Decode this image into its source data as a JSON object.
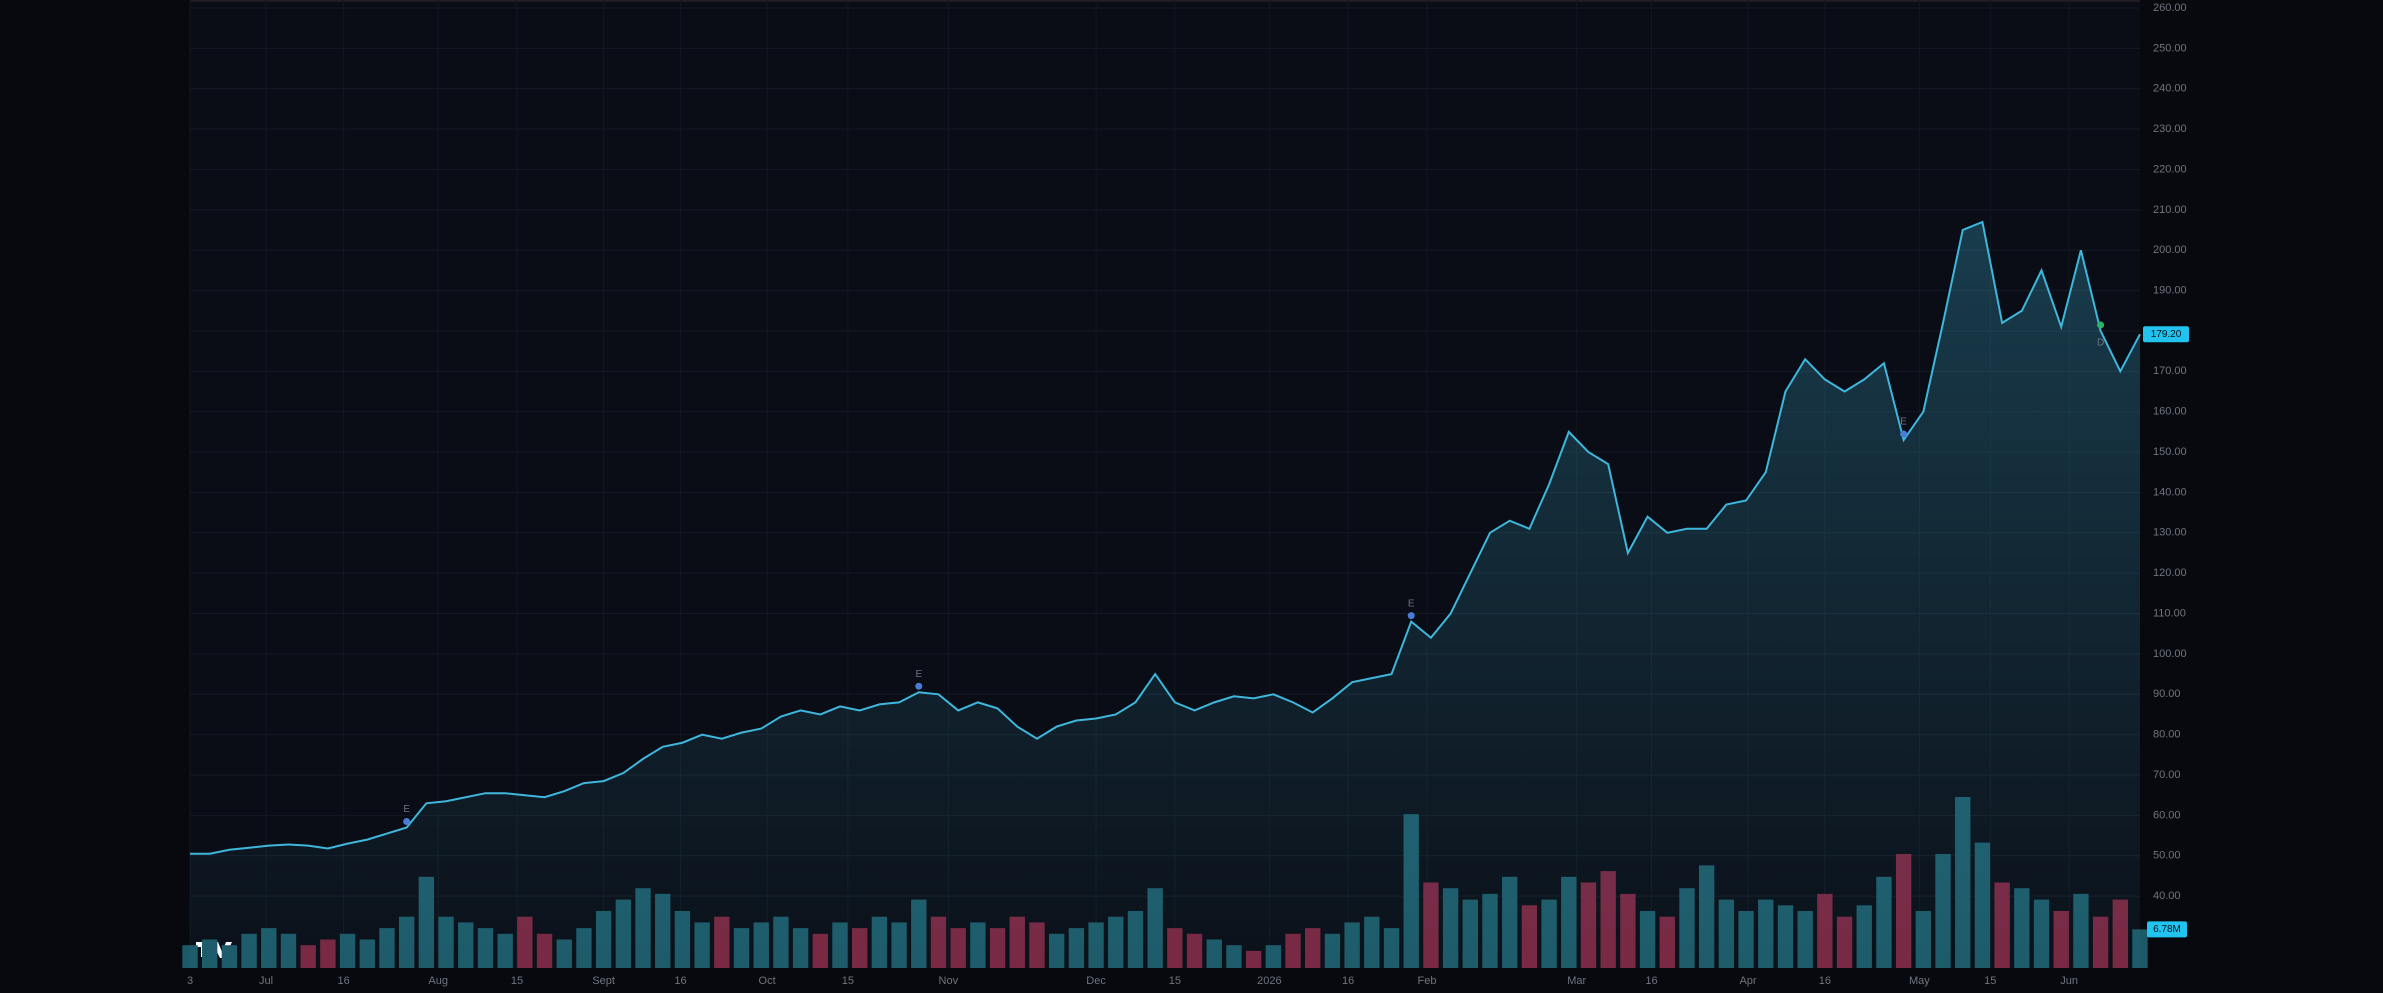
{
  "chart_data": {
    "type": "line",
    "xlim": [
      0,
      99
    ],
    "xticks": [
      {
        "value": 0,
        "label": "3"
      },
      {
        "value": 3.86,
        "label": "Jul"
      },
      {
        "value": 7.8,
        "label": "16"
      },
      {
        "value": 12.6,
        "label": "Aug"
      },
      {
        "value": 16.6,
        "label": "15"
      },
      {
        "value": 21,
        "label": "Sept"
      },
      {
        "value": 24.9,
        "label": "16"
      },
      {
        "value": 29.3,
        "label": "Oct"
      },
      {
        "value": 33.4,
        "label": "15"
      },
      {
        "value": 38.5,
        "label": "Nov"
      },
      {
        "value": 46,
        "label": "Dec"
      },
      {
        "value": 50,
        "label": "15"
      },
      {
        "value": 54.8,
        "label": "2026"
      },
      {
        "value": 58.8,
        "label": "16"
      },
      {
        "value": 62.8,
        "label": "Feb"
      },
      {
        "value": 70.4,
        "label": "Mar"
      },
      {
        "value": 74.2,
        "label": "16"
      },
      {
        "value": 79.1,
        "label": "Apr"
      },
      {
        "value": 83,
        "label": "16"
      },
      {
        "value": 87.8,
        "label": "May"
      },
      {
        "value": 91.4,
        "label": "15"
      },
      {
        "value": 95.4,
        "label": "Jun"
      }
    ],
    "ylim": [
      22.2,
      260
    ],
    "yticks": [
      {
        "value": 40,
        "label": "40.00"
      },
      {
        "value": 50,
        "label": "50.00"
      },
      {
        "value": 60,
        "label": "60.00"
      },
      {
        "value": 70,
        "label": "70.00"
      },
      {
        "value": 80,
        "label": "80.00"
      },
      {
        "value": 90,
        "label": "90.00"
      },
      {
        "value": 100,
        "label": "100.00"
      },
      {
        "value": 110,
        "label": "110.00"
      },
      {
        "value": 120,
        "label": "120.00"
      },
      {
        "value": 130,
        "label": "130.00"
      },
      {
        "value": 140,
        "label": "140.00"
      },
      {
        "value": 150,
        "label": "150.00"
      },
      {
        "value": 160,
        "label": "160.00"
      },
      {
        "value": 170,
        "label": "170.00"
      },
      {
        "value": 180,
        "label": "180.00"
      },
      {
        "value": 190,
        "label": "190.00"
      },
      {
        "value": 200,
        "label": "200.00"
      },
      {
        "value": 210,
        "label": "210.00"
      },
      {
        "value": 220,
        "label": "220.00"
      },
      {
        "value": 230,
        "label": "230.00"
      },
      {
        "value": 240,
        "label": "240.00"
      },
      {
        "value": 250,
        "label": "250.00"
      },
      {
        "value": 260,
        "label": "260.00"
      }
    ],
    "grid": true,
    "price": {
      "color": "#3fb6dc",
      "values": [
        50.5,
        50.5,
        51.5,
        52,
        52.5,
        52.8,
        52.5,
        51.8,
        53,
        54,
        55.5,
        57,
        63,
        63.5,
        64.5,
        65.5,
        65.5,
        65,
        64.5,
        66,
        68,
        68.5,
        70.5,
        74,
        77,
        78,
        80,
        79,
        80.5,
        81.5,
        84.5,
        86,
        85,
        87,
        86,
        87.5,
        88,
        90.5,
        90,
        86,
        88,
        86.5,
        82,
        79,
        82,
        83.5,
        84,
        85,
        88,
        95,
        88,
        86,
        88,
        89.5,
        89,
        90,
        88,
        85.5,
        89,
        93,
        94,
        95,
        108,
        104,
        110,
        120,
        130,
        133,
        131,
        142,
        155,
        150,
        147,
        125,
        134,
        130,
        131,
        131,
        137,
        138,
        145,
        165,
        173,
        168,
        165,
        168,
        172,
        153,
        160,
        182,
        205,
        207,
        182,
        185,
        195,
        181,
        200,
        180,
        170,
        179.2
      ],
      "current": {
        "value": 179.2,
        "label": "179.20"
      }
    },
    "volume": {
      "ylim": [
        0,
        40
      ],
      "up_color": "#1d5a68",
      "down_color": "#7a2640",
      "values": [
        4,
        5,
        4,
        6,
        7,
        6,
        4,
        5,
        6,
        5,
        7,
        9,
        16,
        9,
        8,
        7,
        6,
        9,
        6,
        5,
        7,
        10,
        12,
        14,
        13,
        10,
        8,
        9,
        7,
        8,
        9,
        7,
        6,
        8,
        7,
        9,
        8,
        12,
        9,
        7,
        8,
        7,
        9,
        8,
        6,
        7,
        8,
        9,
        10,
        14,
        7,
        6,
        5,
        4,
        3,
        4,
        6,
        7,
        6,
        8,
        9,
        7,
        27,
        15,
        14,
        12,
        13,
        16,
        11,
        12,
        16,
        15,
        17,
        13,
        10,
        9,
        14,
        18,
        12,
        10,
        12,
        11,
        10,
        13,
        9,
        11,
        16,
        20,
        10,
        20,
        30,
        22,
        15,
        14,
        12,
        10,
        13,
        9,
        12,
        6.78
      ],
      "current": {
        "value": 6.78,
        "label": "6.78M"
      }
    },
    "events": [
      {
        "index": 11,
        "label": "E",
        "color": "#4a7bd6"
      },
      {
        "index": 37,
        "label": "E",
        "color": "#4a7bd6"
      },
      {
        "index": 62,
        "label": "E",
        "color": "#4a7bd6"
      },
      {
        "index": 87,
        "label": "E",
        "color": "#4a7bd6"
      },
      {
        "index": 97,
        "label": "D",
        "color": "#2fb36b"
      }
    ]
  }
}
